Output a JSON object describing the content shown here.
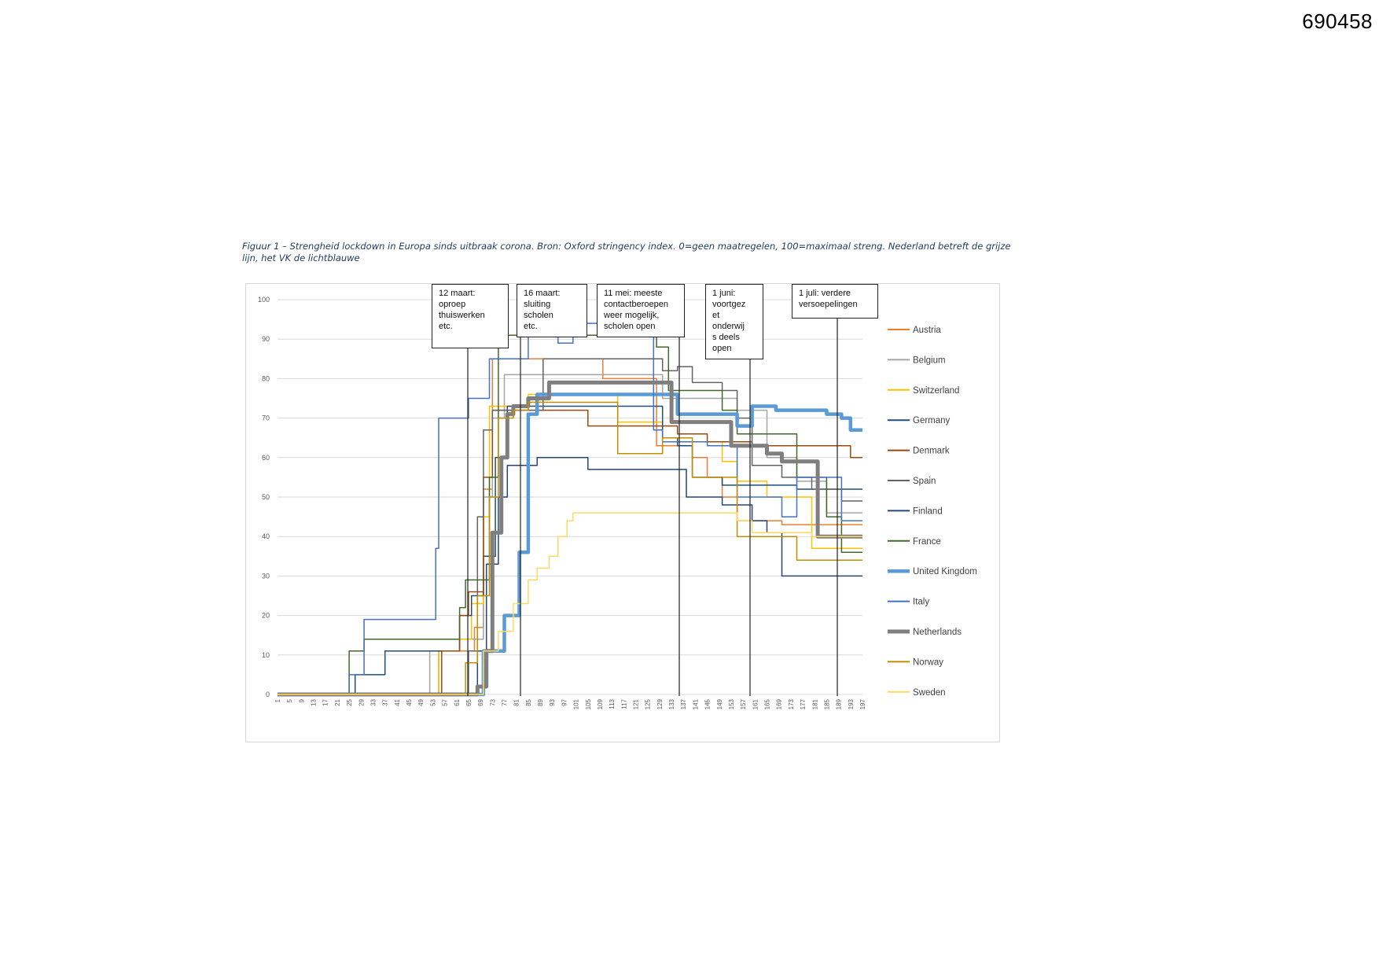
{
  "document": {
    "number": "690458",
    "caption": "Figuur 1 – Strengheid lockdown in Europa sinds uitbraak corona. Bron: Oxford stringency index. 0=geen maatregelen, 100=maximaal streng. Nederland betreft de grijze lijn, het VK de lichtblauwe"
  },
  "annotations": [
    {
      "text": "12 maart:\noproep\nthuiswerken\netc.",
      "day": 69
    },
    {
      "text": "16 maart:\nsluiting\nscholen\netc.",
      "day": 73
    },
    {
      "text": "11 mei: meeste\ncontactberoepen\nweer mogelijk,\nscholen open",
      "day": 132
    },
    {
      "text": "1 juni:\nvoortgez\net\nonderwij\ns deels\nopen",
      "day": 153
    },
    {
      "text": "1 juli: verdere\nversoepelingen",
      "day": 183
    }
  ],
  "chart_data": {
    "type": "line",
    "title": "",
    "xlabel": "",
    "ylabel": "",
    "xlim": [
      1,
      197
    ],
    "ylim": [
      0,
      100
    ],
    "yticks": [
      0,
      10,
      20,
      30,
      40,
      50,
      60,
      70,
      80,
      90,
      100
    ],
    "xticks": [
      1,
      5,
      9,
      13,
      17,
      21,
      25,
      29,
      33,
      37,
      41,
      45,
      49,
      53,
      57,
      61,
      65,
      69,
      73,
      77,
      81,
      85,
      89,
      93,
      97,
      101,
      105,
      109,
      113,
      117,
      121,
      125,
      129,
      133,
      137,
      141,
      145,
      149,
      153,
      157,
      161,
      165,
      169,
      173,
      177,
      181,
      185,
      189,
      193,
      197
    ],
    "grid": "horizontal",
    "legend_position": "right",
    "series": [
      {
        "name": "Austria",
        "color": "#ed7d31",
        "width": 1.5,
        "points": [
          [
            1,
            0
          ],
          [
            53,
            0
          ],
          [
            55,
            11
          ],
          [
            63,
            11
          ],
          [
            67,
            17
          ],
          [
            70,
            52
          ],
          [
            73,
            85
          ],
          [
            90,
            85
          ],
          [
            100,
            85
          ],
          [
            110,
            80
          ],
          [
            125,
            80
          ],
          [
            128,
            63
          ],
          [
            140,
            60
          ],
          [
            145,
            55
          ],
          [
            150,
            50
          ],
          [
            155,
            44
          ],
          [
            170,
            43
          ],
          [
            185,
            43
          ],
          [
            197,
            43
          ]
        ]
      },
      {
        "name": "Belgium",
        "color": "#a5a5a5",
        "width": 1.5,
        "points": [
          [
            1,
            0
          ],
          [
            50,
            0
          ],
          [
            52,
            11
          ],
          [
            62,
            14
          ],
          [
            67,
            14
          ],
          [
            70,
            50
          ],
          [
            73,
            70
          ],
          [
            77,
            81
          ],
          [
            90,
            81
          ],
          [
            125,
            81
          ],
          [
            130,
            75
          ],
          [
            150,
            75
          ],
          [
            155,
            72
          ],
          [
            165,
            60
          ],
          [
            175,
            54
          ],
          [
            185,
            46
          ],
          [
            197,
            46
          ]
        ]
      },
      {
        "name": "Switzerland",
        "color": "#ffc000",
        "width": 1.5,
        "points": [
          [
            1,
            0
          ],
          [
            53,
            0
          ],
          [
            55,
            11
          ],
          [
            62,
            14
          ],
          [
            66,
            23
          ],
          [
            70,
            45
          ],
          [
            72,
            73
          ],
          [
            80,
            73
          ],
          [
            85,
            76
          ],
          [
            110,
            76
          ],
          [
            115,
            69
          ],
          [
            125,
            69
          ],
          [
            130,
            64
          ],
          [
            145,
            64
          ],
          [
            150,
            59
          ],
          [
            155,
            54
          ],
          [
            165,
            50
          ],
          [
            180,
            37
          ],
          [
            197,
            37
          ]
        ]
      },
      {
        "name": "Germany",
        "color": "#1f4e79",
        "width": 1.5,
        "points": [
          [
            1,
            0
          ],
          [
            25,
            0
          ],
          [
            27,
            5
          ],
          [
            35,
            5
          ],
          [
            37,
            11
          ],
          [
            57,
            11
          ],
          [
            62,
            20
          ],
          [
            66,
            25
          ],
          [
            70,
            35
          ],
          [
            74,
            60
          ],
          [
            78,
            73
          ],
          [
            90,
            73
          ],
          [
            125,
            73
          ],
          [
            130,
            65
          ],
          [
            135,
            63
          ],
          [
            140,
            55
          ],
          [
            150,
            53
          ],
          [
            160,
            53
          ],
          [
            175,
            52
          ],
          [
            185,
            52
          ],
          [
            197,
            52
          ]
        ]
      },
      {
        "name": "Denmark",
        "color": "#9e480e",
        "width": 1.5,
        "points": [
          [
            1,
            0
          ],
          [
            53,
            0
          ],
          [
            56,
            11
          ],
          [
            62,
            20
          ],
          [
            65,
            26
          ],
          [
            68,
            26
          ],
          [
            70,
            55
          ],
          [
            73,
            72
          ],
          [
            85,
            72
          ],
          [
            100,
            72
          ],
          [
            105,
            68
          ],
          [
            125,
            68
          ],
          [
            135,
            66
          ],
          [
            145,
            64
          ],
          [
            160,
            63
          ],
          [
            190,
            63
          ],
          [
            193,
            60
          ],
          [
            197,
            60
          ]
        ]
      },
      {
        "name": "Spain",
        "color": "#636363",
        "width": 1.5,
        "points": [
          [
            1,
            0
          ],
          [
            60,
            0
          ],
          [
            65,
            11
          ],
          [
            68,
            45
          ],
          [
            70,
            67
          ],
          [
            73,
            72
          ],
          [
            80,
            72
          ],
          [
            90,
            85
          ],
          [
            125,
            85
          ],
          [
            130,
            82
          ],
          [
            135,
            83
          ],
          [
            140,
            79
          ],
          [
            150,
            77
          ],
          [
            155,
            70
          ],
          [
            160,
            58
          ],
          [
            170,
            55
          ],
          [
            180,
            52
          ],
          [
            190,
            49
          ],
          [
            197,
            49
          ]
        ]
      },
      {
        "name": "Finland",
        "color": "#264478",
        "width": 1.5,
        "points": [
          [
            1,
            0
          ],
          [
            65,
            0
          ],
          [
            68,
            11
          ],
          [
            71,
            33
          ],
          [
            75,
            50
          ],
          [
            78,
            58
          ],
          [
            85,
            58
          ],
          [
            88,
            60
          ],
          [
            100,
            60
          ],
          [
            105,
            57
          ],
          [
            125,
            57
          ],
          [
            135,
            57
          ],
          [
            138,
            50
          ],
          [
            150,
            48
          ],
          [
            160,
            44
          ],
          [
            165,
            41
          ],
          [
            170,
            30
          ],
          [
            185,
            30
          ],
          [
            197,
            30
          ]
        ]
      },
      {
        "name": "France",
        "color": "#43682b",
        "width": 1.5,
        "points": [
          [
            1,
            0
          ],
          [
            21,
            0
          ],
          [
            25,
            11
          ],
          [
            30,
            14
          ],
          [
            57,
            14
          ],
          [
            62,
            22
          ],
          [
            64,
            29
          ],
          [
            70,
            29
          ],
          [
            72,
            55
          ],
          [
            75,
            91
          ],
          [
            100,
            91
          ],
          [
            120,
            91
          ],
          [
            128,
            88
          ],
          [
            132,
            77
          ],
          [
            145,
            77
          ],
          [
            150,
            72
          ],
          [
            155,
            66
          ],
          [
            165,
            66
          ],
          [
            175,
            55
          ],
          [
            185,
            45
          ],
          [
            190,
            36
          ],
          [
            197,
            36
          ]
        ]
      },
      {
        "name": "United Kingdom",
        "color": "#5b9bd5",
        "width": 4.5,
        "points": [
          [
            1,
            0
          ],
          [
            65,
            0
          ],
          [
            70,
            11
          ],
          [
            74,
            11
          ],
          [
            77,
            20
          ],
          [
            80,
            20
          ],
          [
            82,
            36
          ],
          [
            85,
            71
          ],
          [
            88,
            76
          ],
          [
            100,
            76
          ],
          [
            130,
            76
          ],
          [
            135,
            71
          ],
          [
            150,
            71
          ],
          [
            155,
            68
          ],
          [
            160,
            73
          ],
          [
            165,
            73
          ],
          [
            168,
            72
          ],
          [
            185,
            71
          ],
          [
            190,
            70
          ],
          [
            193,
            67
          ],
          [
            197,
            67
          ]
        ]
      },
      {
        "name": "Italy",
        "color": "#4472c4",
        "width": 1.5,
        "points": [
          [
            1,
            0
          ],
          [
            21,
            0
          ],
          [
            25,
            5
          ],
          [
            28,
            5
          ],
          [
            30,
            19
          ],
          [
            42,
            19
          ],
          [
            50,
            19
          ],
          [
            54,
            37
          ],
          [
            55,
            70
          ],
          [
            63,
            70
          ],
          [
            65,
            75
          ],
          [
            70,
            75
          ],
          [
            72,
            85
          ],
          [
            80,
            85
          ],
          [
            85,
            91
          ],
          [
            92,
            91
          ],
          [
            95,
            89
          ],
          [
            100,
            94
          ],
          [
            110,
            94
          ],
          [
            125,
            94
          ],
          [
            127,
            67
          ],
          [
            130,
            64
          ],
          [
            135,
            64
          ],
          [
            140,
            64
          ],
          [
            145,
            63
          ],
          [
            150,
            63
          ],
          [
            155,
            50
          ],
          [
            165,
            50
          ],
          [
            170,
            45
          ],
          [
            175,
            55
          ],
          [
            185,
            55
          ],
          [
            190,
            44
          ],
          [
            197,
            44
          ]
        ]
      },
      {
        "name": "Netherlands",
        "color": "#7f7f7f",
        "width": 5,
        "points": [
          [
            1,
            0
          ],
          [
            65,
            0
          ],
          [
            68,
            2
          ],
          [
            71,
            11
          ],
          [
            73,
            41
          ],
          [
            76,
            60
          ],
          [
            78,
            71
          ],
          [
            80,
            73
          ],
          [
            85,
            75
          ],
          [
            88,
            75
          ],
          [
            92,
            79
          ],
          [
            100,
            79
          ],
          [
            130,
            79
          ],
          [
            133,
            69
          ],
          [
            145,
            69
          ],
          [
            150,
            69
          ],
          [
            153,
            63
          ],
          [
            160,
            63
          ],
          [
            165,
            61
          ],
          [
            170,
            59
          ],
          [
            180,
            59
          ],
          [
            182,
            40
          ],
          [
            190,
            40
          ],
          [
            197,
            40
          ]
        ]
      },
      {
        "name": "Norway",
        "color": "#bf8f00",
        "width": 1.5,
        "points": [
          [
            1,
            0
          ],
          [
            60,
            0
          ],
          [
            64,
            8
          ],
          [
            68,
            25
          ],
          [
            72,
            50
          ],
          [
            75,
            70
          ],
          [
            80,
            72
          ],
          [
            85,
            74
          ],
          [
            100,
            74
          ],
          [
            115,
            61
          ],
          [
            125,
            61
          ],
          [
            130,
            65
          ],
          [
            140,
            55
          ],
          [
            150,
            55
          ],
          [
            155,
            40
          ],
          [
            165,
            40
          ],
          [
            175,
            34
          ],
          [
            185,
            34
          ],
          [
            197,
            34
          ]
        ]
      },
      {
        "name": "Sweden",
        "color": "#ffd966",
        "width": 1.5,
        "points": [
          [
            1,
            0
          ],
          [
            65,
            0
          ],
          [
            70,
            11
          ],
          [
            75,
            16
          ],
          [
            80,
            23
          ],
          [
            85,
            29
          ],
          [
            88,
            32
          ],
          [
            92,
            35
          ],
          [
            95,
            40
          ],
          [
            98,
            44
          ],
          [
            100,
            46
          ],
          [
            120,
            46
          ],
          [
            150,
            46
          ],
          [
            155,
            44
          ],
          [
            160,
            41
          ],
          [
            170,
            41
          ],
          [
            180,
            40
          ],
          [
            197,
            40
          ]
        ]
      }
    ]
  }
}
